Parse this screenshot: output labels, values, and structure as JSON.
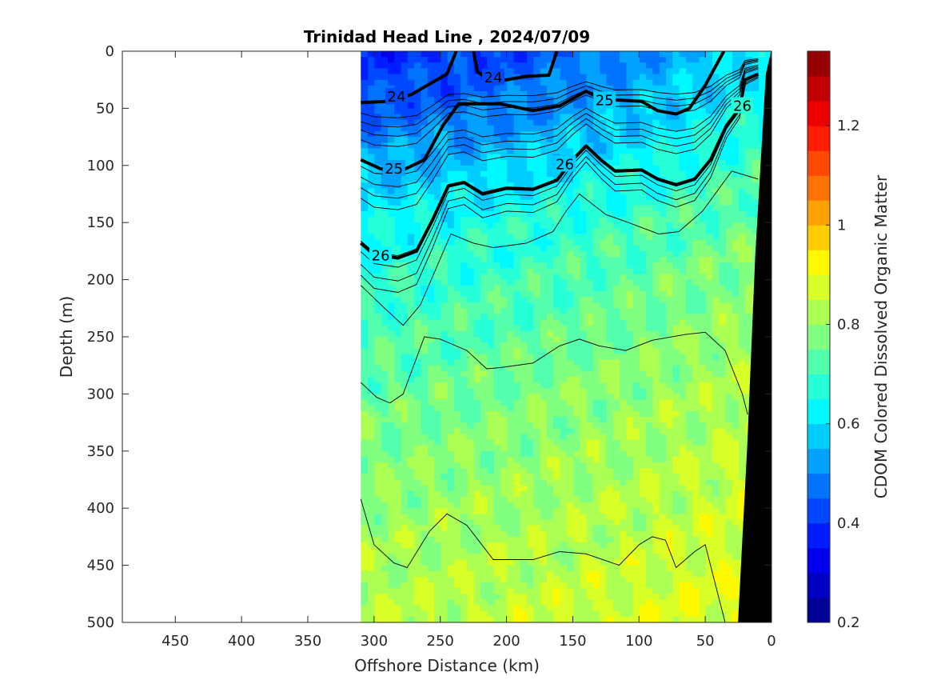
{
  "chart_data": {
    "type": "heatmap",
    "title": "Trinidad Head Line , 2024/07/09",
    "xlabel": "Offshore Distance (km)",
    "ylabel": "Depth (m)",
    "xlim": [
      490,
      0
    ],
    "ylim": [
      0,
      500
    ],
    "x_reversed": true,
    "y_reversed": true,
    "xticks": [
      450,
      400,
      350,
      300,
      250,
      200,
      150,
      100,
      50,
      0
    ],
    "yticks": [
      0,
      50,
      100,
      150,
      200,
      250,
      300,
      350,
      400,
      450,
      500
    ],
    "data_extent_x": [
      310,
      0
    ],
    "colorbar": {
      "label": "CDOM Colored Dissolved Organic Matter",
      "range": [
        0.2,
        1.35
      ],
      "levels": 23,
      "ticks": [
        0.2,
        0.4,
        0.6,
        0.8,
        1,
        1.2
      ],
      "colormap": "jet"
    },
    "field_profile": {
      "depth": [
        0,
        50,
        100,
        150,
        200,
        300,
        400,
        500
      ],
      "value_offshore": [
        0.38,
        0.45,
        0.55,
        0.64,
        0.68,
        0.75,
        0.8,
        0.84
      ],
      "value_nearshore": [
        0.62,
        0.66,
        0.72,
        0.76,
        0.8,
        0.84,
        0.87,
        0.9
      ]
    },
    "bold_contours": [
      {
        "level": "24",
        "points": [
          [
            310,
            45
          ],
          [
            290,
            44
          ],
          [
            272,
            38
          ],
          [
            260,
            30
          ],
          [
            245,
            20
          ],
          [
            238,
            0
          ]
        ]
      },
      {
        "level": "24",
        "points": [
          [
            225,
            0
          ],
          [
            222,
            18
          ],
          [
            210,
            27
          ],
          [
            185,
            22
          ],
          [
            168,
            21
          ],
          [
            162,
            0
          ]
        ]
      },
      {
        "level": "25",
        "points": [
          [
            310,
            95
          ],
          [
            295,
            103
          ],
          [
            278,
            104
          ],
          [
            262,
            95
          ],
          [
            248,
            65
          ],
          [
            236,
            46
          ],
          [
            205,
            46
          ],
          [
            180,
            52
          ],
          [
            160,
            48
          ],
          [
            140,
            35
          ],
          [
            128,
            42
          ],
          [
            112,
            43
          ],
          [
            98,
            44
          ],
          [
            86,
            52
          ],
          [
            72,
            55
          ],
          [
            62,
            50
          ],
          [
            50,
            30
          ],
          [
            36,
            0
          ]
        ]
      },
      {
        "level": "26",
        "points": [
          [
            310,
            168
          ],
          [
            300,
            178
          ],
          [
            282,
            181
          ],
          [
            268,
            175
          ],
          [
            256,
            148
          ],
          [
            244,
            118
          ],
          [
            232,
            115
          ],
          [
            218,
            125
          ],
          [
            200,
            120
          ],
          [
            180,
            121
          ],
          [
            162,
            113
          ],
          [
            150,
            95
          ],
          [
            140,
            83
          ],
          [
            128,
            96
          ],
          [
            118,
            105
          ],
          [
            98,
            104
          ],
          [
            86,
            112
          ],
          [
            72,
            117
          ],
          [
            58,
            112
          ],
          [
            46,
            95
          ],
          [
            34,
            65
          ],
          [
            24,
            50
          ],
          [
            20,
            25
          ],
          [
            10,
            20
          ]
        ]
      }
    ],
    "contour_labels": [
      {
        "text": "24",
        "x": 283,
        "y": 40
      },
      {
        "text": "24",
        "x": 210,
        "y": 23
      },
      {
        "text": "25",
        "x": 285,
        "y": 103
      },
      {
        "text": "25",
        "x": 126,
        "y": 43
      },
      {
        "text": "26",
        "x": 295,
        "y": 179
      },
      {
        "text": "26",
        "x": 156,
        "y": 99
      },
      {
        "text": "26",
        "x": 22,
        "y": 48
      }
    ],
    "thin_contours_depth": [
      8,
      16,
      24,
      33,
      58,
      68,
      78,
      88,
      128,
      138,
      150,
      160
    ],
    "deep_contours": [
      {
        "points": [
          [
            310,
            205
          ],
          [
            292,
            225
          ],
          [
            278,
            240
          ],
          [
            265,
            222
          ],
          [
            242,
            160
          ],
          [
            225,
            168
          ],
          [
            210,
            172
          ],
          [
            185,
            168
          ],
          [
            165,
            158
          ],
          [
            155,
            140
          ],
          [
            145,
            125
          ],
          [
            125,
            143
          ],
          [
            108,
            150
          ],
          [
            85,
            160
          ],
          [
            70,
            158
          ],
          [
            52,
            140
          ],
          [
            30,
            105
          ],
          [
            10,
            112
          ]
        ]
      },
      {
        "points": [
          [
            310,
            290
          ],
          [
            298,
            303
          ],
          [
            288,
            308
          ],
          [
            278,
            300
          ],
          [
            262,
            250
          ],
          [
            250,
            252
          ],
          [
            230,
            262
          ],
          [
            215,
            278
          ],
          [
            205,
            277
          ],
          [
            180,
            273
          ],
          [
            160,
            258
          ],
          [
            145,
            252
          ],
          [
            130,
            258
          ],
          [
            110,
            262
          ],
          [
            90,
            253
          ],
          [
            65,
            248
          ],
          [
            50,
            246
          ],
          [
            35,
            262
          ],
          [
            22,
            300
          ],
          [
            18,
            318
          ]
        ]
      },
      {
        "points": [
          [
            310,
            392
          ],
          [
            300,
            432
          ],
          [
            285,
            448
          ],
          [
            275,
            452
          ],
          [
            258,
            420
          ],
          [
            245,
            405
          ],
          [
            230,
            415
          ],
          [
            210,
            445
          ],
          [
            180,
            445
          ],
          [
            160,
            438
          ],
          [
            140,
            440
          ],
          [
            115,
            450
          ],
          [
            100,
            432
          ],
          [
            90,
            425
          ],
          [
            80,
            428
          ],
          [
            72,
            452
          ],
          [
            58,
            438
          ],
          [
            50,
            432
          ],
          [
            35,
            500
          ]
        ]
      }
    ],
    "bathymetry": [
      [
        25,
        500
      ],
      [
        18,
        345
      ],
      [
        12,
        180
      ],
      [
        4,
        20
      ],
      [
        0,
        0
      ],
      [
        0,
        500
      ]
    ]
  }
}
